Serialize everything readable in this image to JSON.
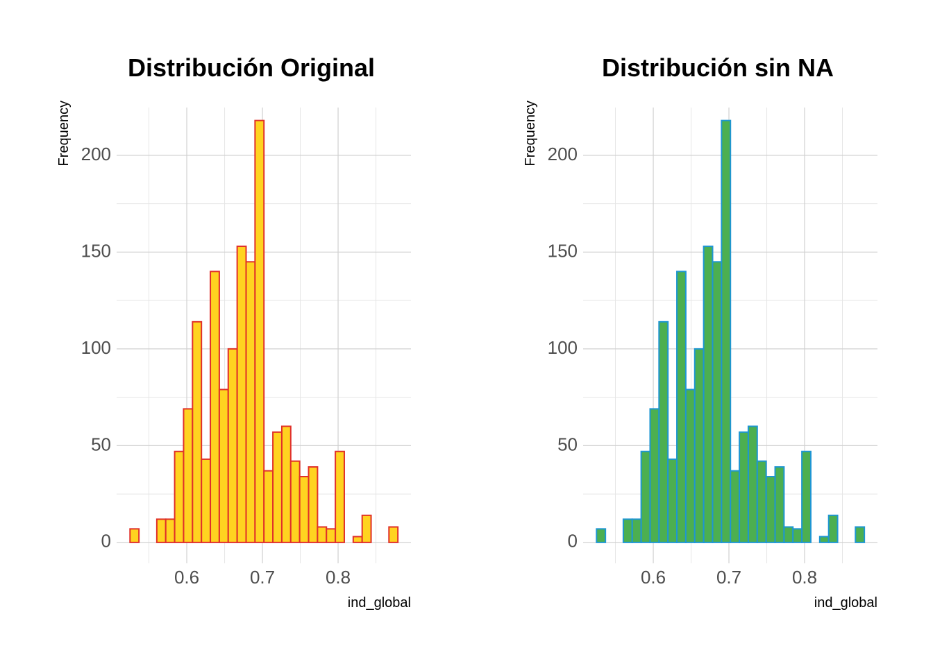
{
  "chart_data": [
    {
      "type": "histogram",
      "title": "Distribución Original",
      "x_label": "ind_global",
      "y_label": "Frequency",
      "bins": [
        0.525,
        0.5368,
        0.5486,
        0.5604,
        0.5722,
        0.584,
        0.5958,
        0.6076,
        0.6194,
        0.6312,
        0.643,
        0.6548,
        0.6666,
        0.6784,
        0.6902,
        0.702,
        0.7138,
        0.7256,
        0.7374,
        0.7492,
        0.761,
        0.7728,
        0.7846,
        0.7964,
        0.8082,
        0.82,
        0.8318,
        0.8436,
        0.8554,
        0.8672,
        0.879
      ],
      "values": [
        7,
        0,
        0,
        12,
        12,
        47,
        69,
        114,
        43,
        140,
        79,
        100,
        153,
        145,
        218,
        37,
        57,
        60,
        42,
        34,
        39,
        8,
        7,
        47,
        0,
        3,
        14,
        0,
        0,
        8
      ],
      "color": "#FFD320",
      "edge_color": "#E0302A",
      "xlim": [
        0.5073,
        0.8963
      ],
      "xticks": [
        0.6,
        0.7,
        0.8
      ],
      "minor_xticks": [
        0.55,
        0.65,
        0.75,
        0.85
      ],
      "ylim": [
        -10.8,
        224.7
      ],
      "yticks": [
        0,
        50,
        100,
        150,
        200
      ],
      "minor_yticks": [
        25,
        75,
        125,
        175
      ],
      "grid": true
    },
    {
      "type": "histogram",
      "title": "Distribución sin NA",
      "x_label": "ind_global",
      "y_label": "Frequency",
      "bins": [
        0.525,
        0.5368,
        0.5486,
        0.5604,
        0.5722,
        0.584,
        0.5958,
        0.6076,
        0.6194,
        0.6312,
        0.643,
        0.6548,
        0.6666,
        0.6784,
        0.6902,
        0.702,
        0.7138,
        0.7256,
        0.7374,
        0.7492,
        0.761,
        0.7728,
        0.7846,
        0.7964,
        0.8082,
        0.82,
        0.8318,
        0.8436,
        0.8554,
        0.8672,
        0.879
      ],
      "values": [
        7,
        0,
        0,
        12,
        12,
        47,
        69,
        114,
        43,
        140,
        79,
        100,
        153,
        145,
        218,
        37,
        57,
        60,
        42,
        34,
        39,
        8,
        7,
        47,
        0,
        3,
        14,
        0,
        0,
        8
      ],
      "color": "#4CAF50",
      "edge_color": "#1E96D2",
      "xlim": [
        0.5073,
        0.8963
      ],
      "xticks": [
        0.6,
        0.7,
        0.8
      ],
      "minor_xticks": [
        0.55,
        0.65,
        0.75,
        0.85
      ],
      "ylim": [
        -10.8,
        224.7
      ],
      "yticks": [
        0,
        50,
        100,
        150,
        200
      ],
      "minor_yticks": [
        25,
        75,
        125,
        175
      ],
      "grid": true
    }
  ]
}
